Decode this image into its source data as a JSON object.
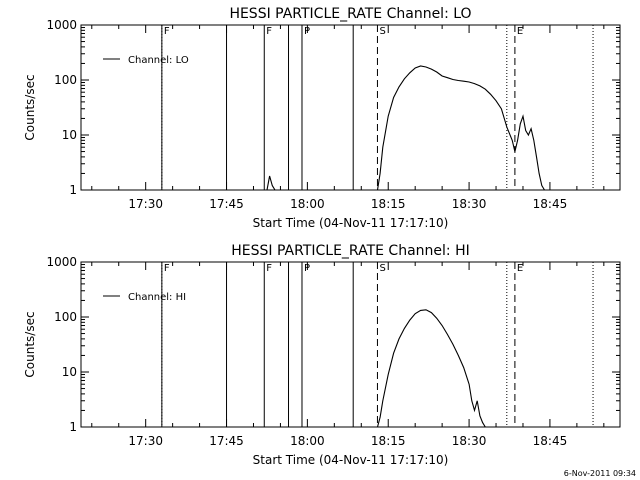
{
  "footer": {
    "timestamp": "6-Nov-2011 09:34"
  },
  "chart_data": [
    {
      "type": "line",
      "title": "HESSI PARTICLE_RATE Channel: LO",
      "xlabel": "Start Time (04-Nov-11 17:17:10)",
      "ylabel": "Counts/sec",
      "yscale": "log",
      "xlim": [
        "17:18",
        "18:58"
      ],
      "ylim": [
        1,
        1000
      ],
      "x_ticks": [
        "17:30",
        "17:45",
        "18:00",
        "18:15",
        "18:30",
        "18:45"
      ],
      "y_ticks": [
        "1",
        "10",
        "100",
        "1000"
      ],
      "legend": {
        "entries": [
          "Channel: LO"
        ],
        "position": "top-left"
      },
      "markers": [
        {
          "time": "17:33",
          "style": "dotted",
          "label": "F"
        },
        {
          "time": "17:33",
          "style": "solid",
          "label": ""
        },
        {
          "time": "17:45",
          "style": "solid",
          "label": ""
        },
        {
          "time": "17:52",
          "style": "solid",
          "label": "F"
        },
        {
          "time": "17:56.5",
          "style": "solid",
          "label": ""
        },
        {
          "time": "17:59",
          "style": "solid",
          "label": "P"
        },
        {
          "time": "18:08.5",
          "style": "solid",
          "label": ""
        },
        {
          "time": "18:13",
          "style": "dashed",
          "label": "S"
        },
        {
          "time": "18:37",
          "style": "dotted",
          "label": ""
        },
        {
          "time": "18:38.5",
          "style": "dashed",
          "label": "E"
        },
        {
          "time": "18:53",
          "style": "dotted",
          "label": ""
        }
      ],
      "series": [
        {
          "name": "Channel: LO",
          "x": [
            "18:13",
            "18:13.5",
            "18:14",
            "18:15",
            "18:16",
            "18:17",
            "18:18",
            "18:19",
            "18:20",
            "18:21",
            "18:22",
            "18:23",
            "18:24",
            "18:25",
            "18:26",
            "18:27",
            "18:28",
            "18:29",
            "18:30",
            "18:31",
            "18:32",
            "18:33",
            "18:34",
            "18:35",
            "18:36",
            "18:37",
            "18:38",
            "18:38.5",
            "18:39",
            "18:39.5",
            "18:40",
            "18:40.5",
            "18:41",
            "18:41.5",
            "18:42",
            "18:42.5",
            "18:43",
            "18:43.5",
            "18:44",
            "18:44.5"
          ],
          "y": [
            1,
            2,
            6,
            22,
            48,
            75,
            105,
            135,
            165,
            180,
            172,
            158,
            140,
            118,
            110,
            102,
            98,
            95,
            92,
            86,
            78,
            68,
            55,
            42,
            30,
            14,
            8,
            5,
            8,
            16,
            22,
            12,
            10,
            13,
            8,
            4,
            2,
            1.2,
            1,
            1
          ]
        },
        {
          "name": "",
          "x": [
            "17:52.5",
            "17:53",
            "17:53.5",
            "17:54"
          ],
          "y": [
            1,
            1.8,
            1.2,
            1
          ]
        }
      ]
    },
    {
      "type": "line",
      "title": "HESSI PARTICLE_RATE Channel: HI",
      "xlabel": "Start Time (04-Nov-11 17:17:10)",
      "ylabel": "Counts/sec",
      "yscale": "log",
      "xlim": [
        "17:18",
        "18:58"
      ],
      "ylim": [
        1,
        1000
      ],
      "x_ticks": [
        "17:30",
        "17:45",
        "18:00",
        "18:15",
        "18:30",
        "18:45"
      ],
      "y_ticks": [
        "1",
        "10",
        "100",
        "1000"
      ],
      "legend": {
        "entries": [
          "Channel: HI"
        ],
        "position": "top-left"
      },
      "markers": [
        {
          "time": "17:33",
          "style": "dotted",
          "label": "F"
        },
        {
          "time": "17:33",
          "style": "solid",
          "label": ""
        },
        {
          "time": "17:45",
          "style": "solid",
          "label": ""
        },
        {
          "time": "17:52",
          "style": "solid",
          "label": "F"
        },
        {
          "time": "17:56.5",
          "style": "solid",
          "label": ""
        },
        {
          "time": "17:59",
          "style": "solid",
          "label": "P"
        },
        {
          "time": "18:08.5",
          "style": "solid",
          "label": ""
        },
        {
          "time": "18:13",
          "style": "dashed",
          "label": "S"
        },
        {
          "time": "18:37",
          "style": "dotted",
          "label": ""
        },
        {
          "time": "18:38.5",
          "style": "dashed",
          "label": "E"
        },
        {
          "time": "18:53",
          "style": "dotted",
          "label": ""
        }
      ],
      "series": [
        {
          "name": "Channel: HI",
          "x": [
            "18:13",
            "18:13.5",
            "18:14",
            "18:15",
            "18:16",
            "18:17",
            "18:18",
            "18:19",
            "18:20",
            "18:21",
            "18:22",
            "18:23",
            "18:24",
            "18:25",
            "18:26",
            "18:27",
            "18:28",
            "18:29",
            "18:30",
            "18:30.5",
            "18:31",
            "18:31.5",
            "18:32",
            "18:32.5",
            "18:33"
          ],
          "y": [
            1,
            1.5,
            3,
            9,
            22,
            40,
            62,
            88,
            115,
            132,
            135,
            120,
            95,
            70,
            48,
            32,
            20,
            12,
            6,
            3,
            2,
            3,
            1.6,
            1.2,
            1
          ]
        }
      ]
    }
  ]
}
